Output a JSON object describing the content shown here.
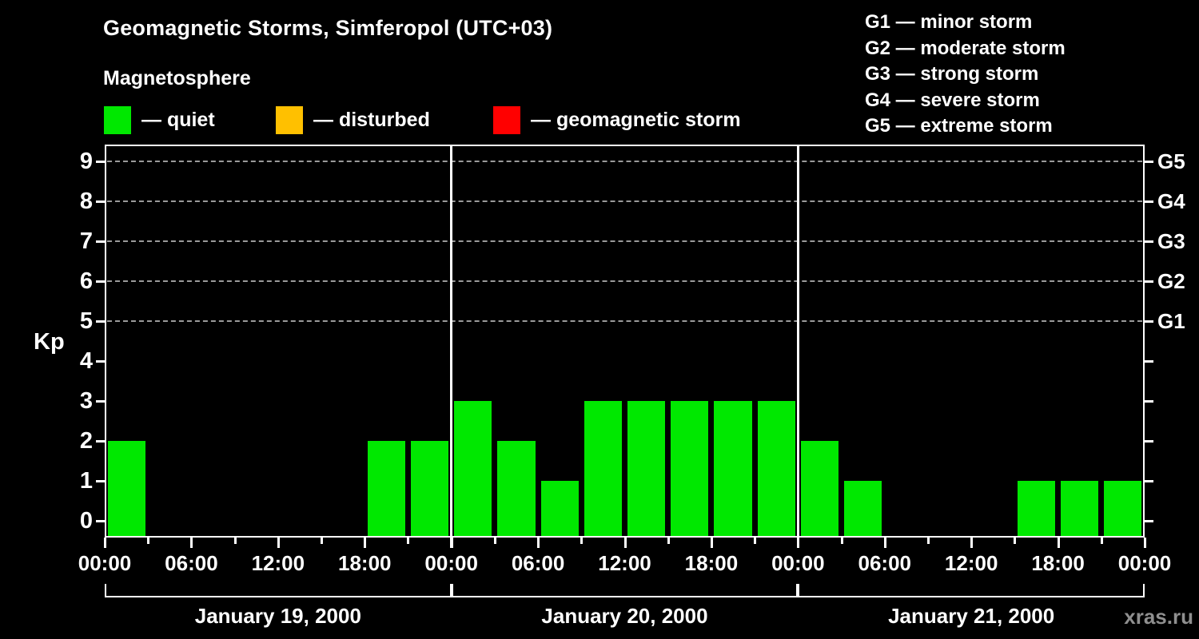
{
  "header": {
    "title": "Geomagnetic Storms, Simferopol (UTC+03)",
    "subtitle": "Magnetosphere"
  },
  "legend": {
    "items": [
      {
        "name": "quiet",
        "label": "— quiet",
        "color": "#00e800"
      },
      {
        "name": "disturbed",
        "label": "— disturbed",
        "color": "#ffc000"
      },
      {
        "name": "geomagnetic-storm",
        "label": "— geomagnetic storm",
        "color": "#ff0000"
      }
    ]
  },
  "g_scale_legend": {
    "items": [
      "G1 — minor storm",
      "G2 — moderate storm",
      "G3 — strong storm",
      "G4 — severe storm",
      "G5 — extreme storm"
    ]
  },
  "chart_data": {
    "type": "bar",
    "title": "Geomagnetic Storms, Simferopol (UTC+03)",
    "ylabel": "Kp",
    "ylim": [
      0,
      9
    ],
    "y_ticks": [
      0,
      1,
      2,
      3,
      4,
      5,
      6,
      7,
      8,
      9
    ],
    "gridlines_kp": [
      5,
      6,
      7,
      8,
      9
    ],
    "right_axis_labels": [
      {
        "label": "G1",
        "kp": 5
      },
      {
        "label": "G2",
        "kp": 6
      },
      {
        "label": "G3",
        "kp": 7
      },
      {
        "label": "G4",
        "kp": 8
      },
      {
        "label": "G5",
        "kp": 9
      }
    ],
    "hours_per_bar": 3,
    "x_tick_labels": [
      "00:00",
      "06:00",
      "12:00",
      "18:00",
      "00:00",
      "06:00",
      "12:00",
      "18:00",
      "00:00",
      "06:00",
      "12:00",
      "18:00",
      "00:00"
    ],
    "days": [
      {
        "date": "January 19, 2000",
        "kp": [
          2,
          0,
          0,
          0,
          0,
          0,
          2,
          2
        ]
      },
      {
        "date": "January 20, 2000",
        "kp": [
          3,
          2,
          1,
          3,
          3,
          3,
          3,
          3
        ]
      },
      {
        "date": "January 21, 2000",
        "kp": [
          2,
          1,
          0,
          0,
          0,
          1,
          1,
          1
        ]
      }
    ],
    "bar_color": "#00e800",
    "status_colors": {
      "quiet": "#00e800",
      "disturbed": "#ffc000",
      "storm": "#ff0000"
    },
    "grid_color": "#9a9a9a",
    "legend_position": "top"
  },
  "footer": {
    "watermark": "xras.ru"
  }
}
